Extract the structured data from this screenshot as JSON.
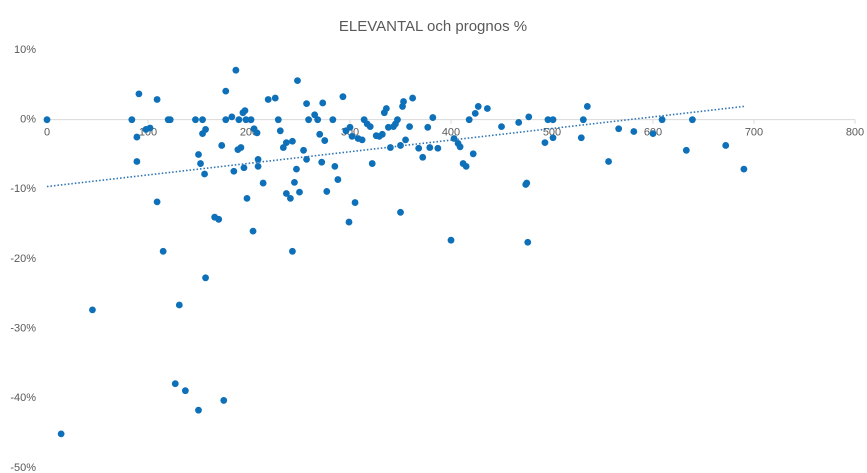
{
  "chart_data": {
    "type": "scatter",
    "title": "ELEVANTAL och prognos %",
    "color": "#0e70b8",
    "xlim": [
      0,
      800
    ],
    "xticks": [
      0,
      100,
      200,
      300,
      400,
      500,
      600,
      700,
      800
    ],
    "ylim": [
      -50,
      10
    ],
    "yticks": [
      {
        "value": 10,
        "label": "10%"
      },
      {
        "value": 0,
        "label": "0%"
      },
      {
        "value": -10,
        "label": "-10%"
      },
      {
        "value": -20,
        "label": "-20%"
      },
      {
        "value": -30,
        "label": "-30%"
      },
      {
        "value": -40,
        "label": "-40%"
      },
      {
        "value": -50,
        "label": "-50%"
      }
    ],
    "grid": false,
    "x": [
      0,
      14,
      45,
      84,
      91,
      89,
      89,
      98,
      102,
      109,
      109,
      115,
      120,
      122,
      127,
      131,
      137,
      147,
      150,
      150,
      152,
      154,
      154,
      156,
      157,
      157,
      166,
      170,
      173,
      175,
      177,
      177,
      183,
      187,
      185,
      189,
      190,
      192,
      194,
      196,
      195,
      197,
      198,
      202,
      204,
      205,
      208,
      209,
      209,
      214,
      219,
      226,
      229,
      231,
      234,
      237,
      237,
      241,
      243,
      243,
      245,
      247,
      248,
      250,
      254,
      257,
      257,
      259,
      265,
      268,
      270,
      272,
      273,
      275,
      277,
      283,
      285,
      288,
      293,
      296,
      299,
      300,
      302,
      305,
      308,
      312,
      314,
      317,
      320,
      322,
      326,
      329,
      332,
      334,
      336,
      338,
      340,
      343,
      345,
      347,
      350,
      350,
      352,
      353,
      355,
      359,
      362,
      368,
      372,
      377,
      379,
      382,
      387,
      400,
      403,
      407,
      409,
      412,
      415,
      418,
      422,
      424,
      427,
      436,
      450,
      467,
      474,
      475,
      476,
      477,
      493,
      496,
      501,
      501,
      529,
      531,
      535,
      556,
      566,
      581,
      600,
      609,
      633,
      639,
      672,
      690
    ],
    "values": [
      0,
      -45.1,
      -27.3,
      0,
      3.7,
      -2.5,
      -6,
      -1.4,
      -1.2,
      2.9,
      -11.8,
      -18.9,
      0,
      0,
      -37.9,
      -26.6,
      -38.9,
      0,
      -41.7,
      -5,
      -6.3,
      0,
      -2,
      -7.8,
      -1.4,
      -22.7,
      -14,
      -14.3,
      -3.7,
      -40.3,
      4.1,
      0,
      0.4,
      7.1,
      -7.4,
      -4.3,
      0,
      -4,
      1,
      1.3,
      -6.9,
      0,
      -11.3,
      0,
      -16,
      -1.3,
      -1.9,
      -5.7,
      -6.7,
      -9.1,
      2.9,
      3.1,
      0,
      -1.6,
      -4,
      -3.3,
      -10.6,
      -11.3,
      -18.9,
      -3.1,
      -9,
      -7.1,
      5.6,
      -10.4,
      -4.4,
      -5.7,
      2.3,
      0,
      0.7,
      0,
      -2.1,
      -6.1,
      2.4,
      -3,
      -10.3,
      0,
      -6.7,
      -8.6,
      3.3,
      -1.6,
      -14.7,
      -1.1,
      -2.4,
      -11.9,
      -2.7,
      -2.9,
      0,
      -0.6,
      -1,
      -6.3,
      -2.3,
      -2.4,
      -2.1,
      1,
      1.6,
      -1.1,
      -4,
      -1,
      -0.6,
      0,
      -3.7,
      -13.3,
      1.9,
      2.6,
      -2.9,
      -1,
      3.1,
      -4.1,
      -5.4,
      -1.1,
      -4,
      0.3,
      -4.1,
      -17.3,
      -2.7,
      -3.4,
      -3.9,
      -6.3,
      -6.7,
      0,
      -4.9,
      0.9,
      1.9,
      1.6,
      -1,
      -0.4,
      -9.3,
      -9.1,
      -17.6,
      0.4,
      -3.3,
      0,
      0,
      -2.6,
      -2.6,
      0,
      1.9,
      -6,
      -1.3,
      -1.7,
      -2,
      0,
      -4.4,
      0,
      -3.7,
      -7.1
    ],
    "trendline": {
      "color": "#2e75b6",
      "x": [
        0,
        690
      ],
      "values": [
        -9.6,
        1.9
      ]
    }
  }
}
